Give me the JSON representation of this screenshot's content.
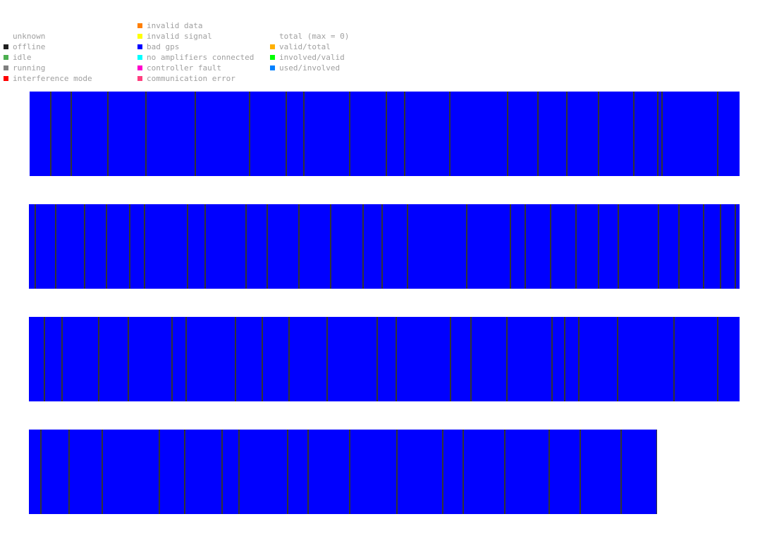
{
  "legend": {
    "status": [
      {
        "label": "unknown",
        "color": ""
      },
      {
        "label": "offline",
        "color": "#202020"
      },
      {
        "label": "idle",
        "color": "#4caf50"
      },
      {
        "label": "running",
        "color": "#808080"
      },
      {
        "label": "interference mode",
        "color": "#ff0000"
      }
    ],
    "errors": [
      {
        "label": "invalid data",
        "color": "#ff7f00"
      },
      {
        "label": "invalid signal",
        "color": "#ffff00"
      },
      {
        "label": "bad gps",
        "color": "#0000ff"
      },
      {
        "label": "no amplifiers connected",
        "color": "#00ffff"
      },
      {
        "label": "controller fault",
        "color": "#ff00cc"
      },
      {
        "label": "communication error",
        "color": "#ff3f7f"
      }
    ],
    "ratios": [
      {
        "label": "total (max = 0)",
        "color": ""
      },
      {
        "label": "valid/total",
        "color": "#ffb000"
      },
      {
        "label": "involved/valid",
        "color": "#00ff00"
      },
      {
        "label": "used/involved",
        "color": "#0080ff"
      }
    ]
  },
  "chart_data": {
    "type": "heatmap",
    "fill_status": "bad gps",
    "separator_color": "#333333",
    "rows": [
      {
        "separator_fractions": [
          0.0288,
          0.0576,
          0.1092,
          0.1627,
          0.2321,
          0.3085,
          0.3601,
          0.3849,
          0.4494,
          0.501,
          0.5278,
          0.5913,
          0.6726,
          0.7153,
          0.756,
          0.8006,
          0.8502,
          0.8839,
          0.8899,
          0.9683
        ]
      },
      {
        "separator_fractions": [
          0.0079,
          0.0367,
          0.0774,
          0.1081,
          0.1409,
          0.1617,
          0.2222,
          0.247,
          0.3046,
          0.3343,
          0.379,
          0.4236,
          0.4692,
          0.496,
          0.5317,
          0.6151,
          0.6766,
          0.6974,
          0.7331,
          0.7688,
          0.8006,
          0.8283,
          0.8849,
          0.9137,
          0.9484,
          0.9722,
          0.9931
        ]
      },
      {
        "separator_fractions": [
          0.0208,
          0.0456,
          0.0972,
          0.1389,
          0.2004,
          0.2202,
          0.2897,
          0.3274,
          0.3651,
          0.4187,
          0.4891,
          0.5159,
          0.5923,
          0.621,
          0.6716,
          0.7351,
          0.753,
          0.7728,
          0.8274,
          0.9067,
          0.9683
        ]
      },
      {
        "separator_fractions": [
          0.0178,
          0.0629,
          0.1157,
          0.2065,
          0.247,
          0.3064,
          0.3333,
          0.4107,
          0.4432,
          0.5101,
          0.5848,
          0.6577,
          0.6902,
          0.7565,
          0.8272,
          0.876,
          0.9411,
          0.9989
        ]
      }
    ]
  }
}
